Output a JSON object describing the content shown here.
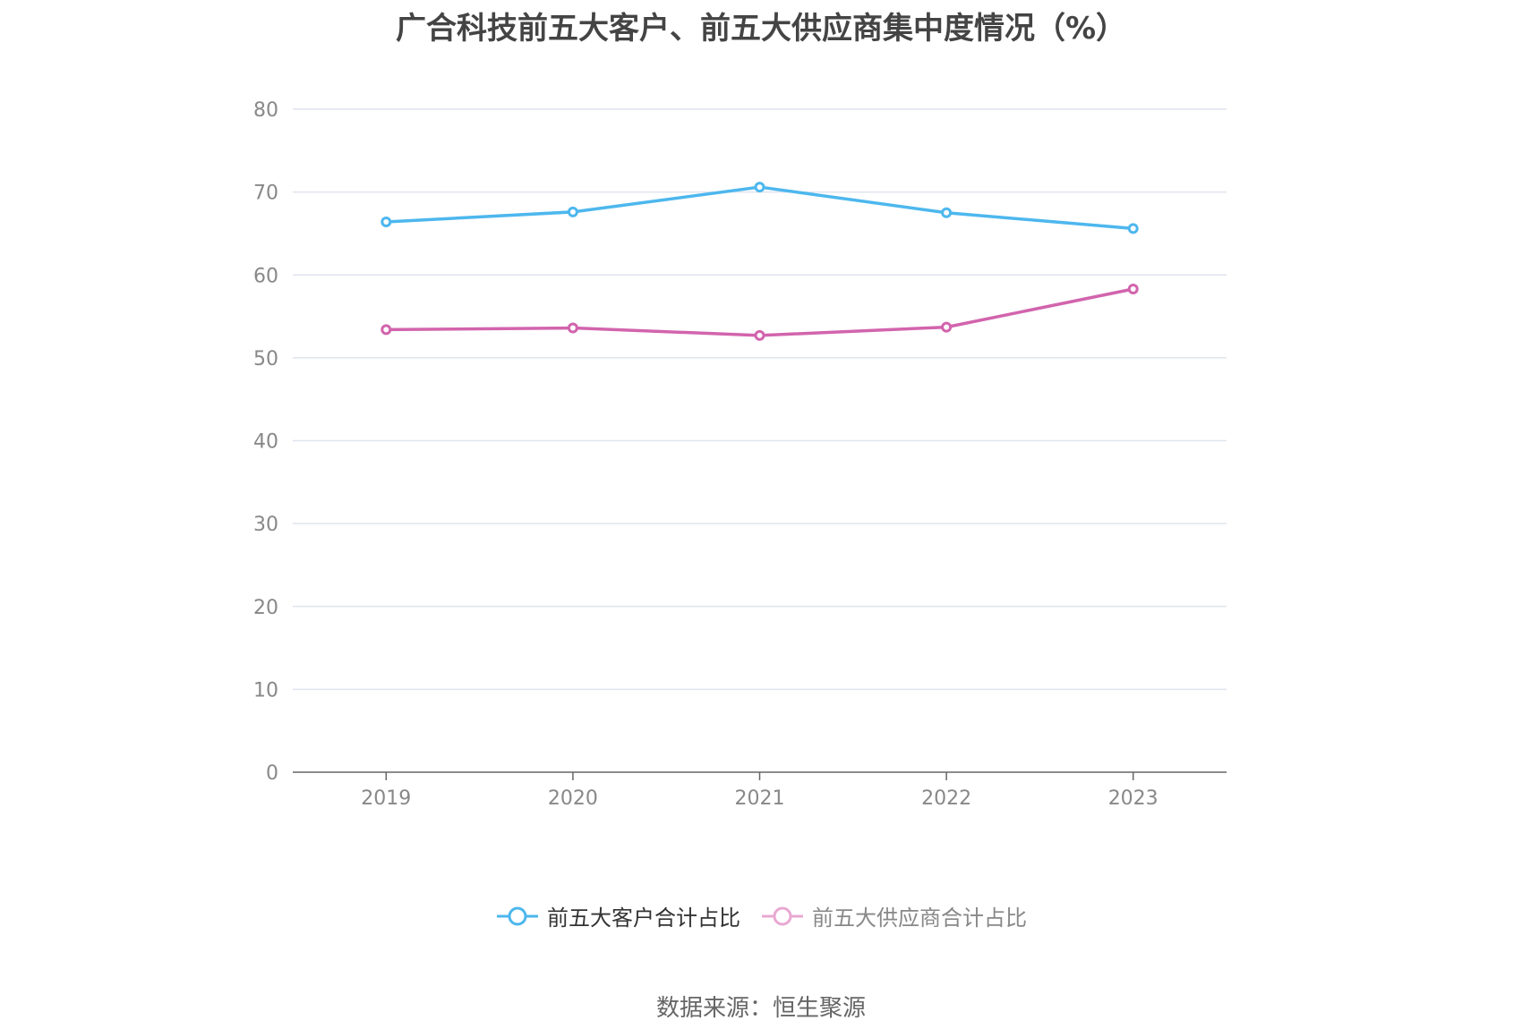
{
  "colors": {
    "customers": "#4db7ee",
    "suppliers": "#d264ad",
    "suppliers_legend": "#e9a8d2",
    "grid": "#dfe4ee",
    "axis": "#666666",
    "text": "#888888"
  },
  "chart_data": {
    "type": "line",
    "title": "广合科技前五大客户、前五大供应商集中度情况（%）",
    "x": [
      "2019",
      "2020",
      "2021",
      "2022",
      "2023"
    ],
    "series": [
      {
        "name": "前五大客户合计占比",
        "values": [
          66.4,
          67.6,
          70.6,
          67.5,
          65.6
        ]
      },
      {
        "name": "前五大供应商合计占比",
        "values": [
          53.4,
          53.6,
          52.7,
          53.7,
          58.3
        ]
      }
    ],
    "ylim": [
      0,
      80
    ],
    "yticks": [
      0,
      10,
      20,
      30,
      40,
      50,
      60,
      70,
      80
    ],
    "grid": true,
    "legend": "bottom-center"
  },
  "legend": {
    "items": [
      {
        "label": "前五大客户合计占比",
        "text_color": "#333333"
      },
      {
        "label": "前五大供应商合计占比",
        "text_color": "#888888"
      }
    ]
  },
  "source": "数据来源：恒生聚源"
}
